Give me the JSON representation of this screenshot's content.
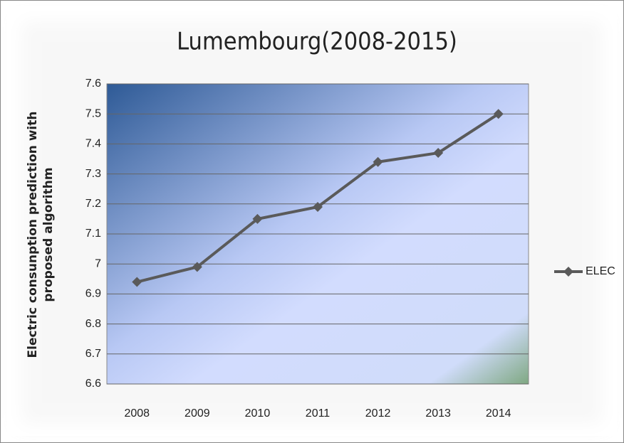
{
  "chart_data": {
    "type": "line",
    "title": "Lumembourg(2008-2015)",
    "ylabel": [
      "Electric consunption prediction with",
      "proposed algorithm"
    ],
    "categories": [
      "2008",
      "2009",
      "2010",
      "2011",
      "2012",
      "2013",
      "2014"
    ],
    "series": [
      {
        "name": "ELEC",
        "color": "#5a5a5a",
        "values": [
          6.94,
          6.99,
          7.15,
          7.19,
          7.34,
          7.37,
          7.5
        ]
      }
    ],
    "ylim": [
      6.6,
      7.6
    ],
    "yticks": [
      6.6,
      6.7,
      6.8,
      6.9,
      7,
      7.1,
      7.2,
      7.3,
      7.4,
      7.5,
      7.6
    ],
    "grid": true,
    "legend": "right"
  }
}
